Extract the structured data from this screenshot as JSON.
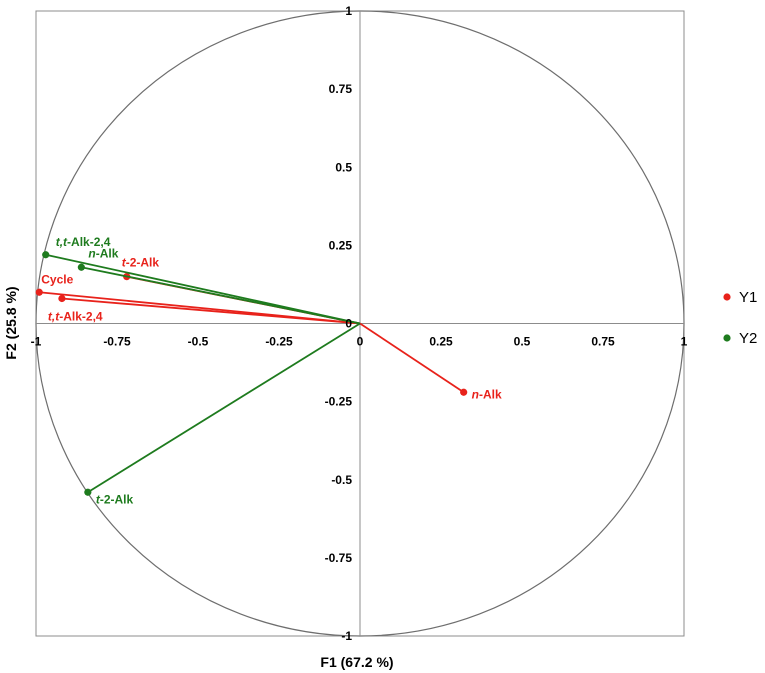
{
  "chart_data": {
    "type": "scatter",
    "subtype": "correlation-circle",
    "xlabel": "F1 (67.2 %)",
    "ylabel": "F2 (25.8 %)",
    "xlim": [
      -1,
      1
    ],
    "ylim": [
      -1,
      1
    ],
    "x_ticks": [
      "-1",
      "-0.75",
      "-0.5",
      "-0.25",
      "0",
      "0.25",
      "0.5",
      "0.75",
      "1"
    ],
    "y_ticks": [
      "-1",
      "-0.75",
      "-0.5",
      "-0.25",
      "0",
      "0.25",
      "0.5",
      "0.75",
      "1"
    ],
    "grid": false,
    "legend_position": "right",
    "series": [
      {
        "name": "Y1",
        "color": "#e8221b",
        "points": [
          {
            "label_prefix": "n",
            "label_rest": "-Alk",
            "x": 0.32,
            "y": -0.22
          },
          {
            "label_prefix": "t",
            "label_rest": "-2-Alk",
            "x": -0.72,
            "y": 0.15
          },
          {
            "label_prefix": "",
            "label_rest": "Cycle",
            "x": -0.99,
            "y": 0.1
          },
          {
            "label_prefix": "t,t",
            "label_rest": "-Alk-2,4",
            "x": -0.92,
            "y": 0.08
          }
        ]
      },
      {
        "name": "Y2",
        "color": "#1e7b1e",
        "points": [
          {
            "label_prefix": "t,t",
            "label_rest": "-Alk-2,4",
            "x": -0.97,
            "y": 0.22
          },
          {
            "label_prefix": "n",
            "label_rest": "-Alk",
            "x": -0.86,
            "y": 0.18
          },
          {
            "label_prefix": "t",
            "label_rest": "-2-Alk",
            "x": -0.84,
            "y": -0.54
          }
        ]
      }
    ]
  }
}
